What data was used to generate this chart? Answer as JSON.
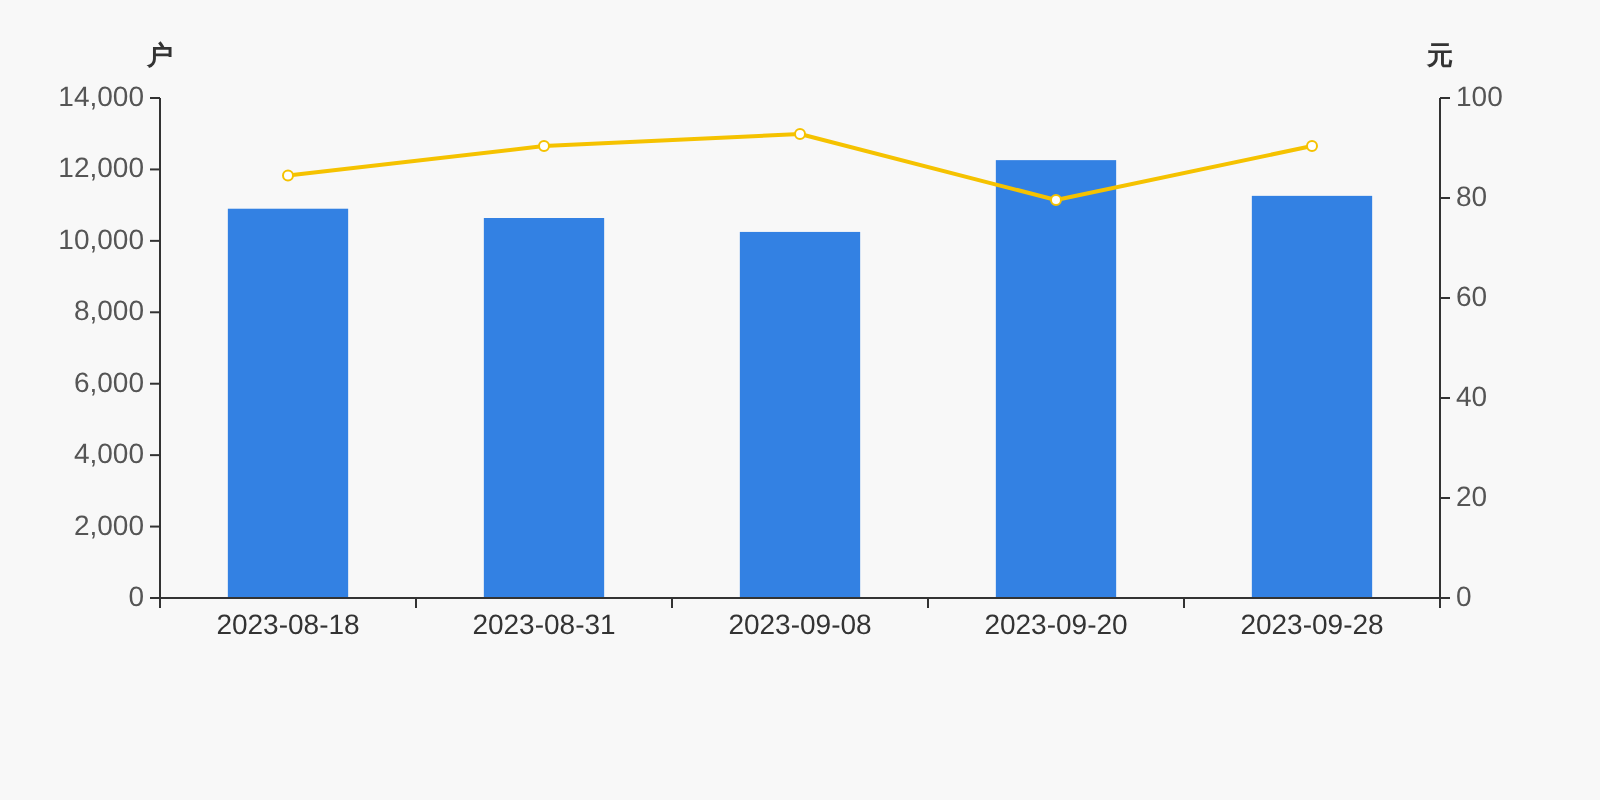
{
  "chart_data": {
    "type": "bar",
    "categories": [
      "2023-08-18",
      "2023-08-31",
      "2023-09-08",
      "2023-09-20",
      "2023-09-28"
    ],
    "ylabel": "户",
    "y2label": "元",
    "ylim": [
      0,
      14000
    ],
    "yticks": [
      0,
      {
        "value": 2000,
        "label": "2,000"
      },
      {
        "value": 4000,
        "label": "4,000"
      },
      {
        "value": 6000,
        "label": "6,000"
      },
      {
        "value": 8000,
        "label": "8,000"
      },
      {
        "value": 10000,
        "label": "10,000"
      },
      {
        "value": 12000,
        "label": "12,000"
      },
      {
        "value": 14000,
        "label": "14,000"
      }
    ],
    "y2lim": [
      0,
      100
    ],
    "y2ticks": [
      0,
      20,
      40,
      60,
      80,
      100
    ],
    "series": [
      {
        "color": "#3381e3",
        "values": [
          10900,
          10640,
          10250,
          12260,
          11260
        ]
      },
      {
        "type": "line",
        "axis": "y2",
        "color": "#f5c200",
        "marker": "circle",
        "values": [
          84.5,
          90.4,
          92.8,
          79.6,
          90.4
        ]
      }
    ]
  }
}
